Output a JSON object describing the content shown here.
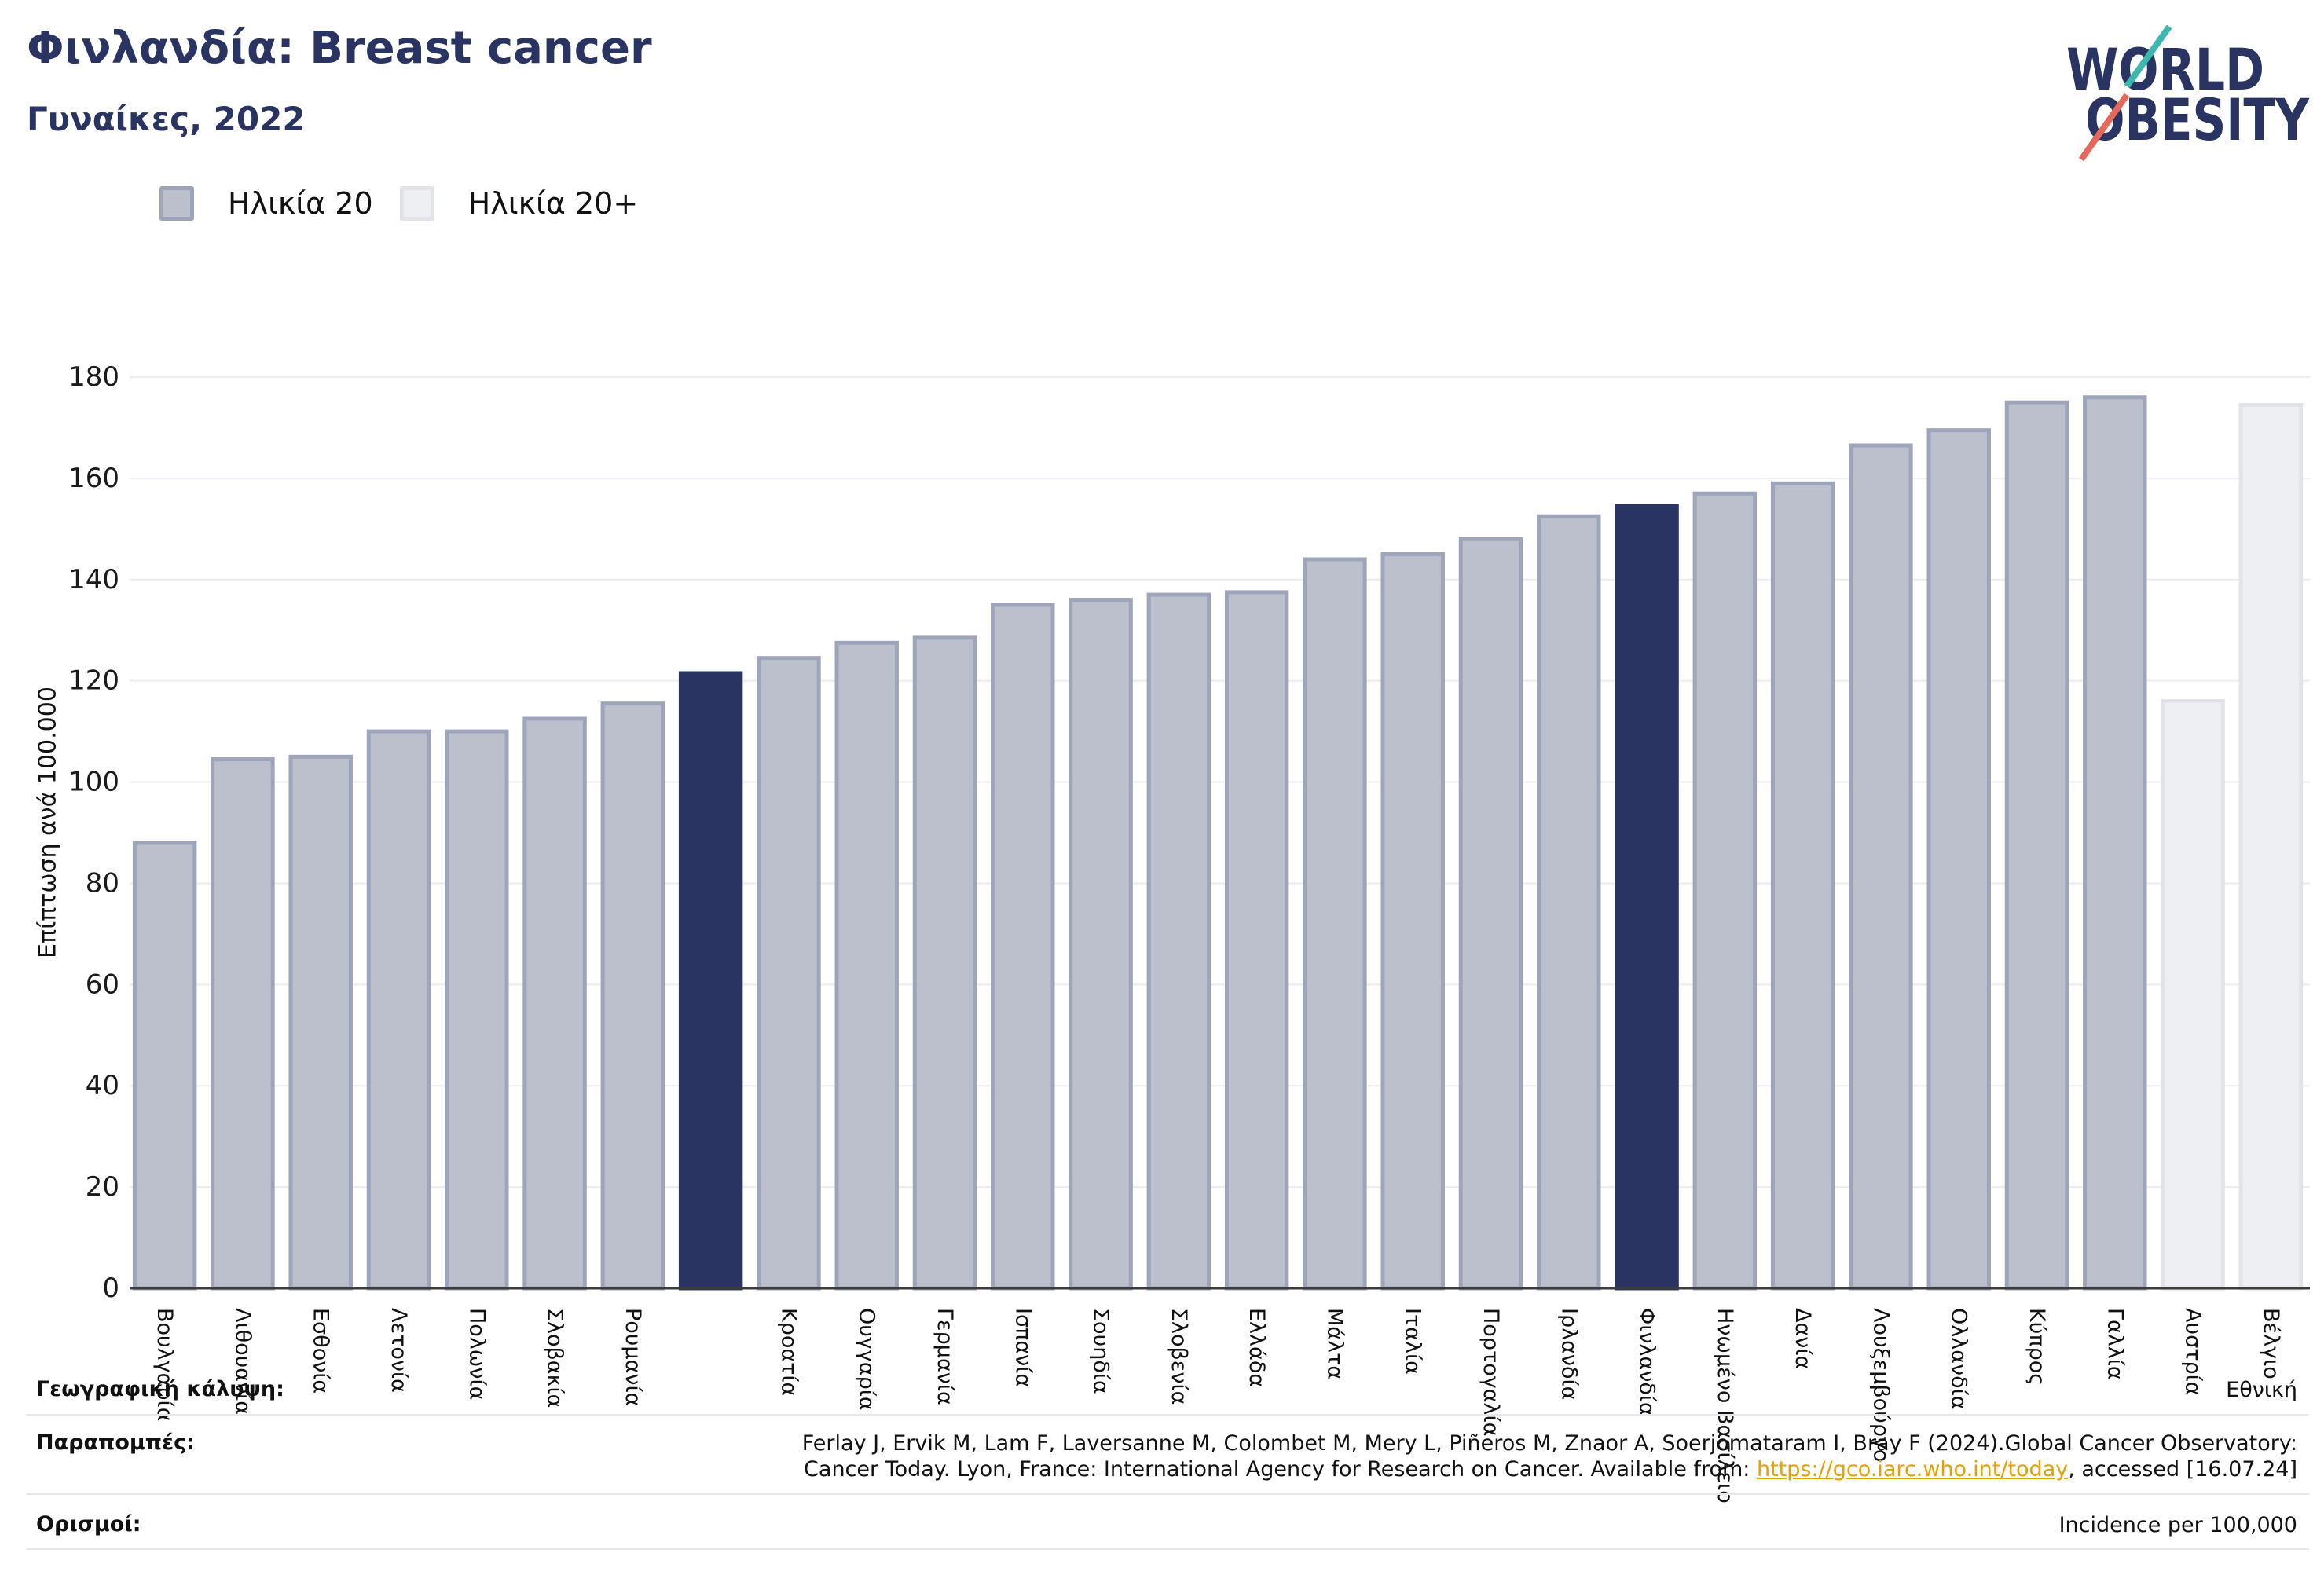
{
  "chart_data": {
    "type": "bar",
    "title": "Φινλανδία: Breast cancer",
    "subtitle": "Γυναίκες, 2022",
    "ylabel": "Επίπτωση ανά 100.000",
    "xlabel": "",
    "ylim": [
      0,
      180
    ],
    "yticks": [
      0,
      20,
      40,
      60,
      80,
      100,
      120,
      140,
      160,
      180
    ],
    "grid": true,
    "legend_position": "top-left",
    "series": [
      {
        "name": "Ηλικία 20",
        "color": "#bcc0cd",
        "edge": "#9ea4ba"
      },
      {
        "name": "Ηλικία 20+",
        "color": "#eeeff3",
        "edge": "#e1e3e9"
      }
    ],
    "highlight_color": "#293462",
    "categories": [
      "Βουλγαρία",
      "Λιθουανία",
      "Εσθονία",
      "Λετονία",
      "Πολωνία",
      "Σλοβακία",
      "Ρουμανία",
      "",
      "Κροατία",
      "Ουγγαρία",
      "Γερμανία",
      "Ισπανία",
      "Σουηδία",
      "Σλοβενία",
      "Ελλάδα",
      "Μάλτα",
      "Ιταλία",
      "Πορτογαλία",
      "Ιρλανδία",
      "Φινλανδία",
      "Ηνωμένο Βασίλειο",
      "Δανία",
      "Λουξεμβούργο",
      "Ολλανδία",
      "Κύπρος",
      "Γαλλία",
      "Αυστρία",
      "Βέλγιο"
    ],
    "values": [
      88,
      104.5,
      105,
      110,
      110,
      112.5,
      115.5,
      121.5,
      124.5,
      127.5,
      128.5,
      135,
      136,
      137,
      137.5,
      144,
      145,
      148,
      152.5,
      154.5,
      157,
      159,
      166.5,
      169.5,
      175,
      176,
      116,
      174.5
    ],
    "bar_series": [
      0,
      0,
      0,
      0,
      0,
      0,
      0,
      0,
      0,
      0,
      0,
      0,
      0,
      0,
      0,
      0,
      0,
      0,
      0,
      0,
      0,
      0,
      0,
      0,
      0,
      0,
      1,
      1
    ],
    "highlighted": [
      7,
      19
    ]
  },
  "logo": {
    "line1": "WORLD",
    "line2": "OBESITY",
    "text_color": "#293462",
    "slash_top_color": "#3cb8ae",
    "slash_bottom_color": "#e6685a"
  },
  "footer": {
    "coverage": {
      "label": "Γεωγραφική κάλυψη:",
      "value": "Εθνική"
    },
    "references": {
      "label": "Παραπομπές:",
      "line1": "Ferlay J, Ervik M, Lam F, Laversanne M, Colombet M, Mery L, Piñeros M, Znaor A, Soerjomataram I, Bray F (2024).Global Cancer Observatory:",
      "line2_prefix": "Cancer Today. Lyon, France: International Agency for Research on Cancer. Available from: ",
      "link": "https://gco.iarc.who.int/today",
      "line2_suffix": ", accessed [16.07.24]"
    },
    "definitions": {
      "label": "Ορισμοί:",
      "value": "Incidence per 100,000"
    }
  },
  "colors": {
    "navy": "#293462",
    "grid": "#ebebf0",
    "axis": "#3c3c3c",
    "link": "#e6a100"
  }
}
